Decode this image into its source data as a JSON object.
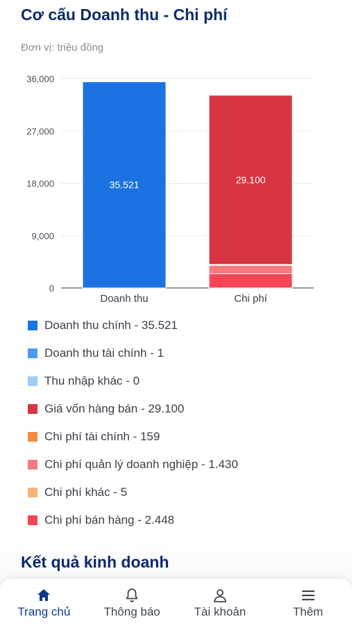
{
  "header": {
    "title": "Cơ cấu Doanh thu - Chi phí",
    "unit": "Đơn vị: triệu đồng"
  },
  "chart_data": {
    "type": "bar",
    "stacked": true,
    "categories": [
      "Doanh thu",
      "Chi phí"
    ],
    "ylim": [
      0,
      36000
    ],
    "yticks": [
      0,
      9000,
      18000,
      27000,
      36000
    ],
    "ytick_labels": [
      "0",
      "9,000",
      "18,000",
      "27,000",
      "36,000"
    ],
    "grid": true,
    "title": "",
    "xlabel": "",
    "ylabel": "",
    "series": [
      {
        "name": "Doanh thu chính",
        "values": [
          35521,
          0
        ],
        "color": "#1a73e0",
        "bar_label": "35.521"
      },
      {
        "name": "Doanh thu tài chính",
        "values": [
          1,
          0
        ],
        "color": "#4c9af0"
      },
      {
        "name": "Thu nhập khác",
        "values": [
          0,
          0
        ],
        "color": "#9fcbf7"
      },
      {
        "name": "Chi phí bán hàng",
        "values": [
          0,
          2448
        ],
        "color": "#f44657"
      },
      {
        "name": "Chi phí quản lý doanh nghiệp",
        "values": [
          0,
          1430
        ],
        "color": "#f97a80"
      },
      {
        "name": "Chi phí tài chính",
        "values": [
          0,
          159
        ],
        "color": "#f98b3c"
      },
      {
        "name": "Chi phí khác",
        "values": [
          0,
          5
        ],
        "color": "#f9b27a"
      },
      {
        "name": "Giá vốn hàng bán",
        "values": [
          0,
          29100
        ],
        "color": "#d63541",
        "bar_label": "29.100"
      }
    ]
  },
  "legend": [
    {
      "label": "Doanh thu chính - 35.521",
      "color": "#1a73e0"
    },
    {
      "label": "Doanh thu tài chính - 1",
      "color": "#4c9af0"
    },
    {
      "label": "Thu nhập khác - 0",
      "color": "#9fcbf7"
    },
    {
      "label": "Giá vốn hàng bán - 29.100",
      "color": "#d63541"
    },
    {
      "label": "Chi phí tài chính - 159",
      "color": "#f98b3c"
    },
    {
      "label": "Chi phí quản lý doanh nghiệp - 1.430",
      "color": "#f97a80"
    },
    {
      "label": "Chi phí khác - 5",
      "color": "#f9b27a"
    },
    {
      "label": "Chi phí bán hàng - 2.448",
      "color": "#f44657"
    }
  ],
  "section": {
    "title": "Kết quả kinh doanh"
  },
  "nav": [
    {
      "label": "Trang chủ",
      "icon": "home-icon",
      "active": true
    },
    {
      "label": "Thông báo",
      "icon": "bell-icon",
      "active": false
    },
    {
      "label": "Tài khoản",
      "icon": "user-icon",
      "active": false
    },
    {
      "label": "Thêm",
      "icon": "menu-icon",
      "active": false
    }
  ]
}
